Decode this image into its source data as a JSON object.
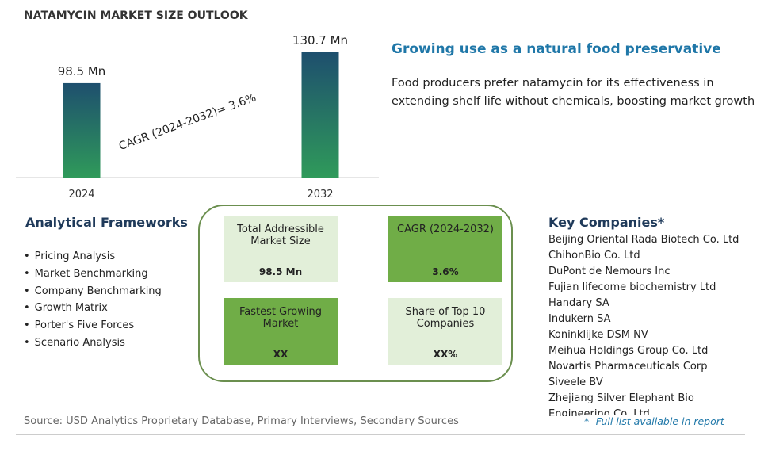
{
  "chart_data": {
    "type": "bar",
    "title": "NATAMYCIN MARKET SIZE OUTLOOK",
    "categories": [
      "2024",
      "2032"
    ],
    "values": [
      98.5,
      130.7
    ],
    "value_labels": [
      "98.5 Mn",
      "130.7 Mn"
    ],
    "annotation": "CAGR (2024-2032)=  3.6%"
  },
  "highlight": {
    "title": "Growing use as a natural food preservative",
    "text": "Food producers prefer natamycin for its effectiveness in extending shelf life without chemicals, boosting market growth"
  },
  "frameworks": {
    "title": "Analytical Frameworks",
    "items": [
      "Pricing Analysis",
      "Market Benchmarking",
      "Company Benchmarking",
      "Growth Matrix",
      "Porter's Five Forces",
      "Scenario Analysis"
    ]
  },
  "summary": [
    {
      "label": "Total Addressible Market Size",
      "value": "98.5 Mn"
    },
    {
      "label": "CAGR (2024-2032)",
      "value": "3.6%"
    },
    {
      "label": "Fastest Growing Market",
      "value": "XX"
    },
    {
      "label": "Share of Top 10 Companies",
      "value": "XX%"
    }
  ],
  "companies": {
    "title": "Key Companies*",
    "items": [
      "Beijing Oriental Rada Biotech Co. Ltd",
      "ChihonBio Co. Ltd",
      "DuPont de Nemours Inc",
      "Fujian lifecome biochemistry Ltd",
      "Handary SA",
      "Indukern SA",
      "Koninklijke DSM NV",
      "Meihua Holdings Group Co. Ltd",
      "Novartis Pharmaceuticals Corp",
      "Siveele BV",
      "Zhejiang Silver Elephant Bio Engineering Co. Ltd"
    ],
    "note": "*- Full list available in report"
  },
  "source": "Source: USD Analytics Proprietary Database, Primary Interviews, Secondary Sources"
}
